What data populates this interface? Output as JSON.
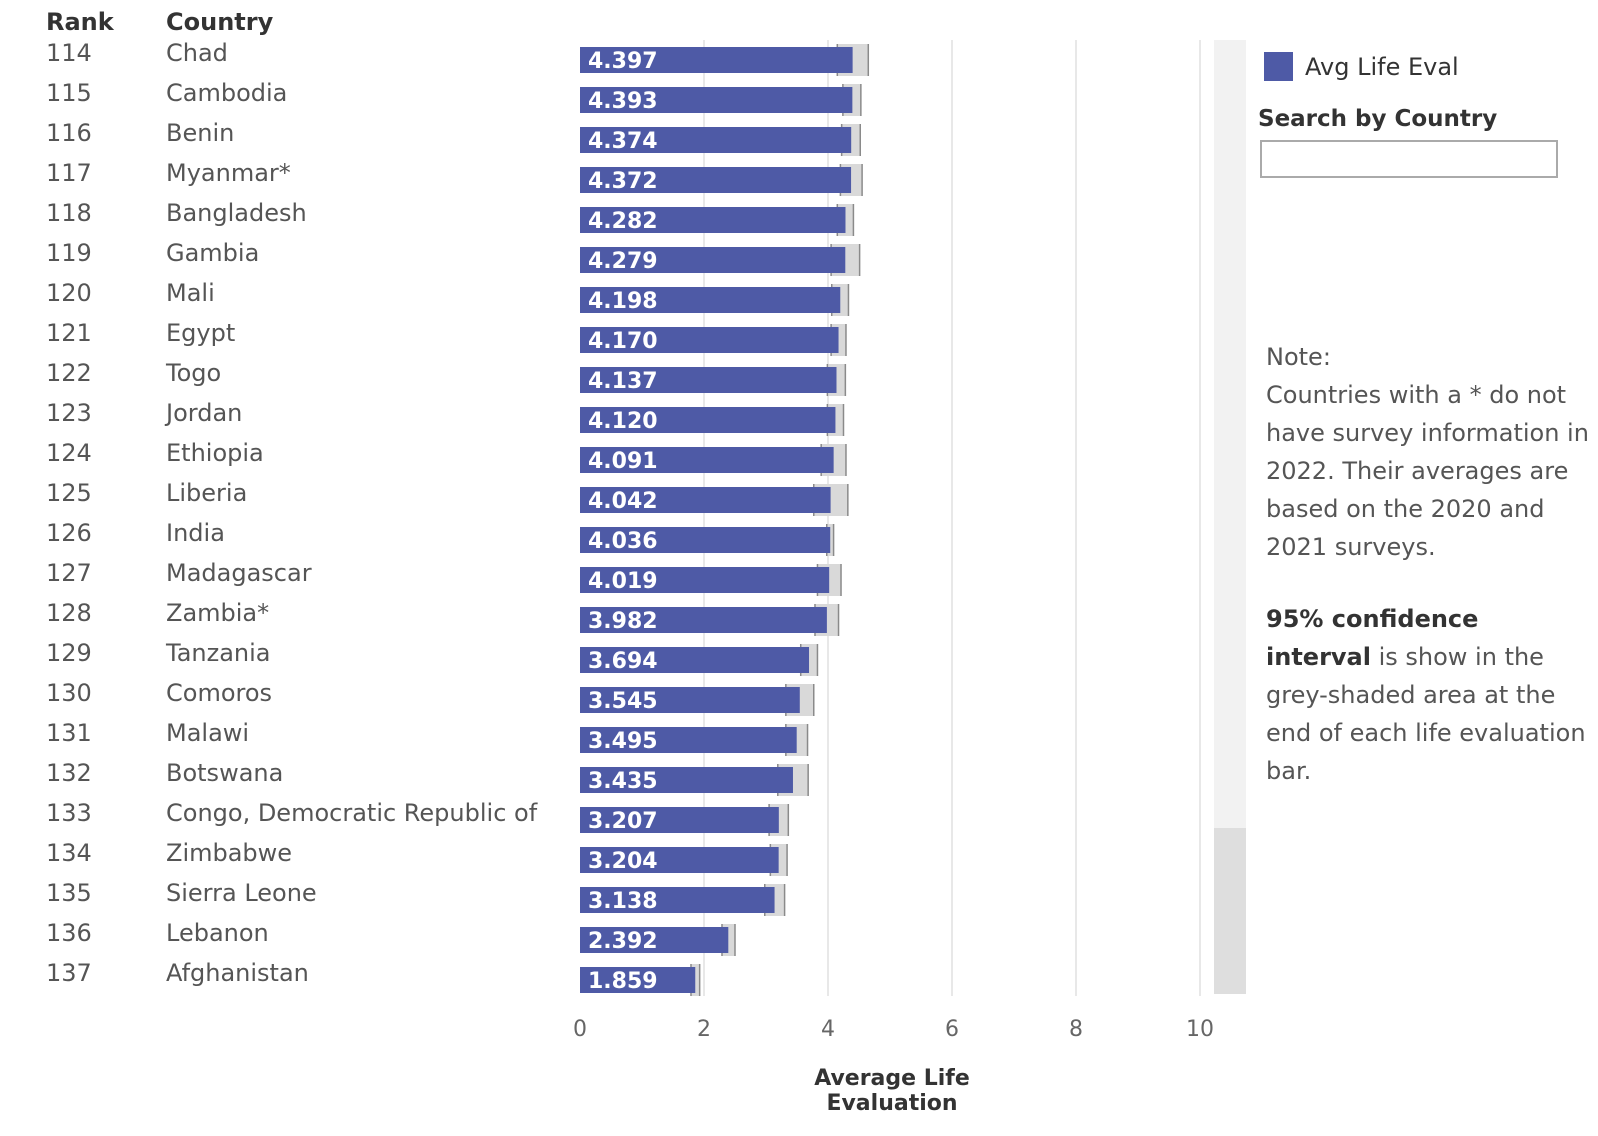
{
  "headers": {
    "rank": "Rank",
    "country": "Country"
  },
  "colors": {
    "bar": "#4e5aa6",
    "ci": "#d9d9d9",
    "ci_edge": "#8a8a8a",
    "grid": "#e8e8e8"
  },
  "legend": {
    "label": "Avg Life Eval"
  },
  "search": {
    "title": "Search by Country",
    "value": "",
    "placeholder": ""
  },
  "note": {
    "heading": "Note:",
    "body": "Countries with a * do not have survey information in 2022. Their averages are based on the 2020 and 2021 surveys.",
    "ci_bold": "95% confidence interval",
    "ci_text": " is show in the grey-shaded area at the end of each life evaluation bar."
  },
  "chart_data": {
    "type": "bar",
    "orientation": "horizontal",
    "title": "",
    "xlabel": "Average Life Evaluation",
    "ylabel": "",
    "xlim": [
      0,
      10
    ],
    "xticks": [
      0,
      2,
      4,
      6,
      8,
      10
    ],
    "grid": true,
    "legend": "top-right",
    "rows": [
      {
        "rank": "114",
        "country": "Chad",
        "value": 4.397,
        "label": "4.397",
        "ci": [
          4.15,
          4.65
        ]
      },
      {
        "rank": "115",
        "country": "Cambodia",
        "value": 4.393,
        "label": "4.393",
        "ci": [
          4.24,
          4.53
        ]
      },
      {
        "rank": "116",
        "country": "Benin",
        "value": 4.374,
        "label": "4.374",
        "ci": [
          4.22,
          4.52
        ]
      },
      {
        "rank": "117",
        "country": "Myanmar*",
        "value": 4.372,
        "label": "4.372",
        "ci": [
          4.2,
          4.55
        ]
      },
      {
        "rank": "118",
        "country": "Bangladesh",
        "value": 4.282,
        "label": "4.282",
        "ci": [
          4.15,
          4.41
        ]
      },
      {
        "rank": "119",
        "country": "Gambia",
        "value": 4.279,
        "label": "4.279",
        "ci": [
          4.05,
          4.51
        ]
      },
      {
        "rank": "120",
        "country": "Mali",
        "value": 4.198,
        "label": "4.198",
        "ci": [
          4.06,
          4.33
        ]
      },
      {
        "rank": "121",
        "country": "Egypt",
        "value": 4.17,
        "label": "4.170",
        "ci": [
          4.05,
          4.29
        ]
      },
      {
        "rank": "122",
        "country": "Togo",
        "value": 4.137,
        "label": "4.137",
        "ci": [
          3.99,
          4.28
        ]
      },
      {
        "rank": "123",
        "country": "Jordan",
        "value": 4.12,
        "label": "4.120",
        "ci": [
          3.99,
          4.25
        ]
      },
      {
        "rank": "124",
        "country": "Ethiopia",
        "value": 4.091,
        "label": "4.091",
        "ci": [
          3.89,
          4.29
        ]
      },
      {
        "rank": "125",
        "country": "Liberia",
        "value": 4.042,
        "label": "4.042",
        "ci": [
          3.77,
          4.32
        ]
      },
      {
        "rank": "126",
        "country": "India",
        "value": 4.036,
        "label": "4.036",
        "ci": [
          3.98,
          4.09
        ]
      },
      {
        "rank": "127",
        "country": "Madagascar",
        "value": 4.019,
        "label": "4.019",
        "ci": [
          3.83,
          4.21
        ]
      },
      {
        "rank": "128",
        "country": "Zambia*",
        "value": 3.982,
        "label": "3.982",
        "ci": [
          3.79,
          4.17
        ]
      },
      {
        "rank": "129",
        "country": "Tanzania",
        "value": 3.694,
        "label": "3.694",
        "ci": [
          3.56,
          3.83
        ]
      },
      {
        "rank": "130",
        "country": "Comoros",
        "value": 3.545,
        "label": "3.545",
        "ci": [
          3.32,
          3.77
        ]
      },
      {
        "rank": "131",
        "country": "Malawi",
        "value": 3.495,
        "label": "3.495",
        "ci": [
          3.32,
          3.67
        ]
      },
      {
        "rank": "132",
        "country": "Botswana",
        "value": 3.435,
        "label": "3.435",
        "ci": [
          3.19,
          3.68
        ]
      },
      {
        "rank": "133",
        "country": "Congo, Democratic Republic of",
        "value": 3.207,
        "label": "3.207",
        "ci": [
          3.05,
          3.36
        ]
      },
      {
        "rank": "134",
        "country": "Zimbabwe",
        "value": 3.204,
        "label": "3.204",
        "ci": [
          3.07,
          3.34
        ]
      },
      {
        "rank": "135",
        "country": "Sierra Leone",
        "value": 3.138,
        "label": "3.138",
        "ci": [
          2.98,
          3.3
        ]
      },
      {
        "rank": "136",
        "country": "Lebanon",
        "value": 2.392,
        "label": "2.392",
        "ci": [
          2.29,
          2.5
        ]
      },
      {
        "rank": "137",
        "country": "Afghanistan",
        "value": 1.859,
        "label": "1.859",
        "ci": [
          1.79,
          1.93
        ]
      }
    ]
  }
}
